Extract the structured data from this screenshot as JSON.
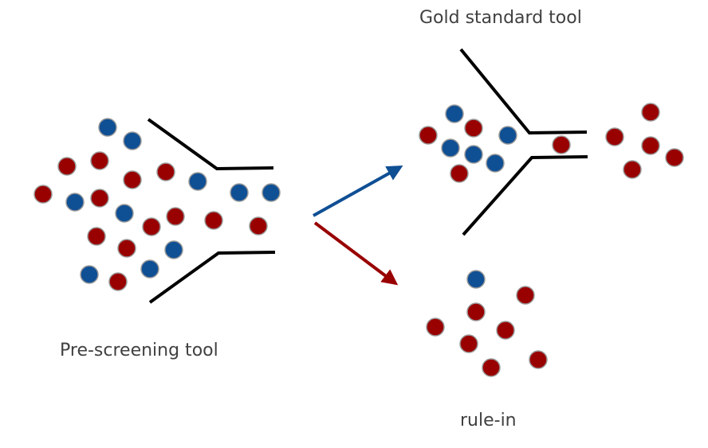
{
  "labels": {
    "pre_screening": "Pre-screening tool",
    "gold_standard": "Gold standard tool",
    "rule_in": "rule-in"
  },
  "colors": {
    "red_dot": "#990000",
    "blue_dot": "#0f4f94",
    "dot_stroke": "#9a9a9a",
    "line": "#000000",
    "arrow_blue": "#0f4f94",
    "arrow_red": "#990000",
    "text": "#404040"
  }
}
